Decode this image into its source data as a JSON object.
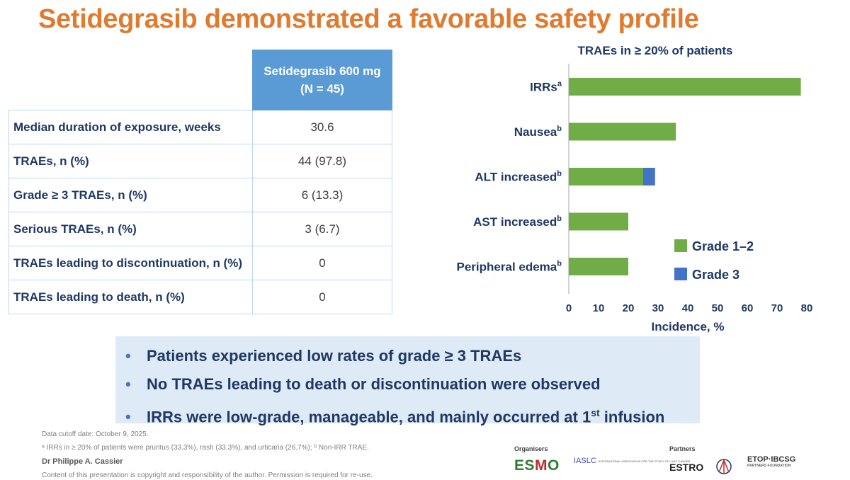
{
  "title": "Setidegrasib demonstrated a favorable safety profile",
  "table": {
    "header_line1": "Setidegrasib 600 mg",
    "header_line2": "(N = 45)",
    "rows": [
      {
        "label": "Median duration of exposure, weeks",
        "value": "30.6"
      },
      {
        "label": "TRAEs, n (%)",
        "value": "44 (97.8)"
      },
      {
        "label": "Grade ≥ 3 TRAEs, n (%)",
        "value": "6 (13.3)"
      },
      {
        "label": "Serious TRAEs, n (%)",
        "value": "3 (6.7)"
      },
      {
        "label": "TRAEs leading to discontinuation, n (%)",
        "value": "0"
      },
      {
        "label": "TRAEs leading to death, n (%)",
        "value": "0"
      }
    ]
  },
  "chart_data": {
    "type": "bar",
    "orientation": "horizontal",
    "stacked": true,
    "title": "TRAEs in ≥ 20% of patients",
    "xlabel": "Incidence, %",
    "ylabel": "",
    "xlim": [
      0,
      80
    ],
    "xticks": [
      "0",
      "10",
      "20",
      "30",
      "40",
      "50",
      "60",
      "70",
      "80"
    ],
    "categories": [
      {
        "label": "IRRs",
        "sup": "a"
      },
      {
        "label": "Nausea",
        "sup": "b"
      },
      {
        "label": "ALT increased",
        "sup": "b"
      },
      {
        "label": "AST increased",
        "sup": "b"
      },
      {
        "label": "Peripheral edema",
        "sup": "b"
      }
    ],
    "series": [
      {
        "name": "Grade 1–2",
        "color": "#70ad47",
        "values": [
          78,
          36,
          25,
          20,
          20
        ]
      },
      {
        "name": "Grade 3",
        "color": "#4472c4",
        "values": [
          0,
          0,
          4,
          0,
          0
        ]
      }
    ],
    "legend_position": "right"
  },
  "bullets": {
    "b1": "Patients experienced low rates of grade ≥ 3 TRAEs",
    "b2": "No TRAEs leading to death or discontinuation were observed",
    "b3_main": "IRRs were low-grade, manageable, and mainly occurred at 1",
    "b3_sup": "st",
    "b3_end": " infusion"
  },
  "footnotes": {
    "cutoff": "Data cutoff date: October 9, 2025.",
    "note": "ᵃ IRRs in ≥ 20% of patients were pruritus (33.3%), rash (33.3%), and urticaria (26.7%); ᵇ Non-IRR TRAE.",
    "author": "Dr Philippe A. Cassier",
    "copyright": "Content of this presentation is copyright and responsibility of the author. Permission is required for re-use."
  },
  "logos": {
    "organisers_label": "Organisers",
    "partners_label": "Partners",
    "esmo_a": "ES",
    "esmo_b": "M",
    "esmo_c": "O",
    "iaslc": "IASLC",
    "iaslc_sub": "INTERNATIONAL ASSOCIATION FOR THE STUDY OF LUNG CANCER",
    "estro": "ESTRO",
    "etop": "ETOP·IBCSG",
    "etop_sub": "PARTNERS FOUNDATION"
  }
}
